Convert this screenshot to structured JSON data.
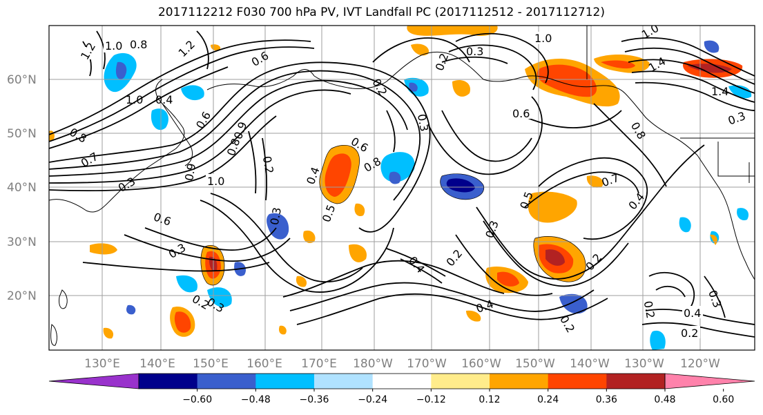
{
  "title": "2017112212 F030 700 hPa PV, IVT Landfall PC (2017112512 - 2017112712)",
  "lat_labels": [
    "60°N",
    "50°N",
    "40°N",
    "30°N",
    "20°N"
  ],
  "lon_labels": [
    "130°E",
    "140°E",
    "150°E",
    "160°E",
    "170°E",
    "180°W",
    "170°W",
    "160°W",
    "150°W",
    "140°W",
    "130°W",
    "120°W"
  ],
  "colorbar": {
    "ticks": [
      "−0.60",
      "−0.48",
      "−0.36",
      "−0.24",
      "−0.12",
      "0.12",
      "0.24",
      "0.36",
      "0.48",
      "0.60"
    ],
    "colors": [
      "#9932cc",
      "#00008b",
      "#3a5fcd",
      "#00bfff",
      "#b0e2ff",
      "#ffffff",
      "#ffec8b",
      "#ffa500",
      "#ff4500",
      "#b22222",
      "#ff82ab"
    ]
  },
  "contour_labels": [
    "1.2",
    "1.0",
    "0.8",
    "0.6",
    "0.4",
    "0.2",
    "0.3",
    "0.7",
    "0.5",
    "0.9",
    "1.4"
  ]
}
